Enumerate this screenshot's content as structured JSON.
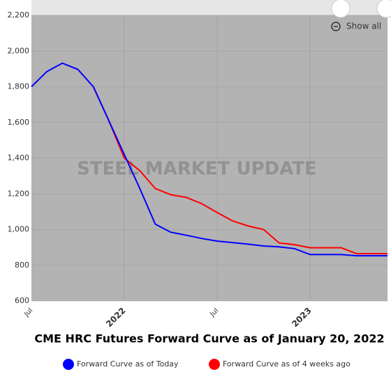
{
  "chart_data": {
    "type": "line",
    "title": "CME HRC Futures Forward Curve as of January 20, 2022",
    "watermark": "STEEL MARKET UPDATE",
    "zoom_button": "Show all",
    "categories": [
      "Jul",
      null,
      null,
      null,
      null,
      null,
      "2022",
      null,
      null,
      null,
      null,
      null,
      "Jul",
      null,
      null,
      null,
      null,
      null,
      "2023",
      null,
      null,
      null,
      null,
      null
    ],
    "series": [
      {
        "name": "Forward Curve as of Today",
        "color": "#0000ff",
        "values": [
          1800,
          1885,
          1932,
          1897,
          1800,
          1610,
          1420,
          1230,
          1030,
          985,
          968,
          950,
          935,
          927,
          918,
          908,
          903,
          893,
          860,
          860,
          860,
          853,
          853,
          853
        ]
      },
      {
        "name": "Forward Curve as of 4 weeks ago",
        "color": "#ff0000",
        "values": [
          null,
          null,
          null,
          null,
          1800,
          1610,
          1400,
          1330,
          1230,
          1195,
          1180,
          1145,
          1095,
          1048,
          1020,
          1000,
          925,
          915,
          898,
          898,
          898,
          865,
          865,
          865
        ]
      }
    ],
    "ylim": [
      600,
      2200
    ],
    "yticks": [
      600,
      800,
      {
        "value": 1000,
        "label": "1,000"
      },
      {
        "value": 1200,
        "label": "1,200"
      },
      {
        "value": 1400,
        "label": "1,400"
      },
      {
        "value": 1600,
        "label": "1,600"
      },
      {
        "value": 1800,
        "label": "1,800"
      },
      {
        "value": 2000,
        "label": "2,000"
      },
      {
        "value": 2200,
        "label": "2,200"
      }
    ],
    "grid": true
  }
}
